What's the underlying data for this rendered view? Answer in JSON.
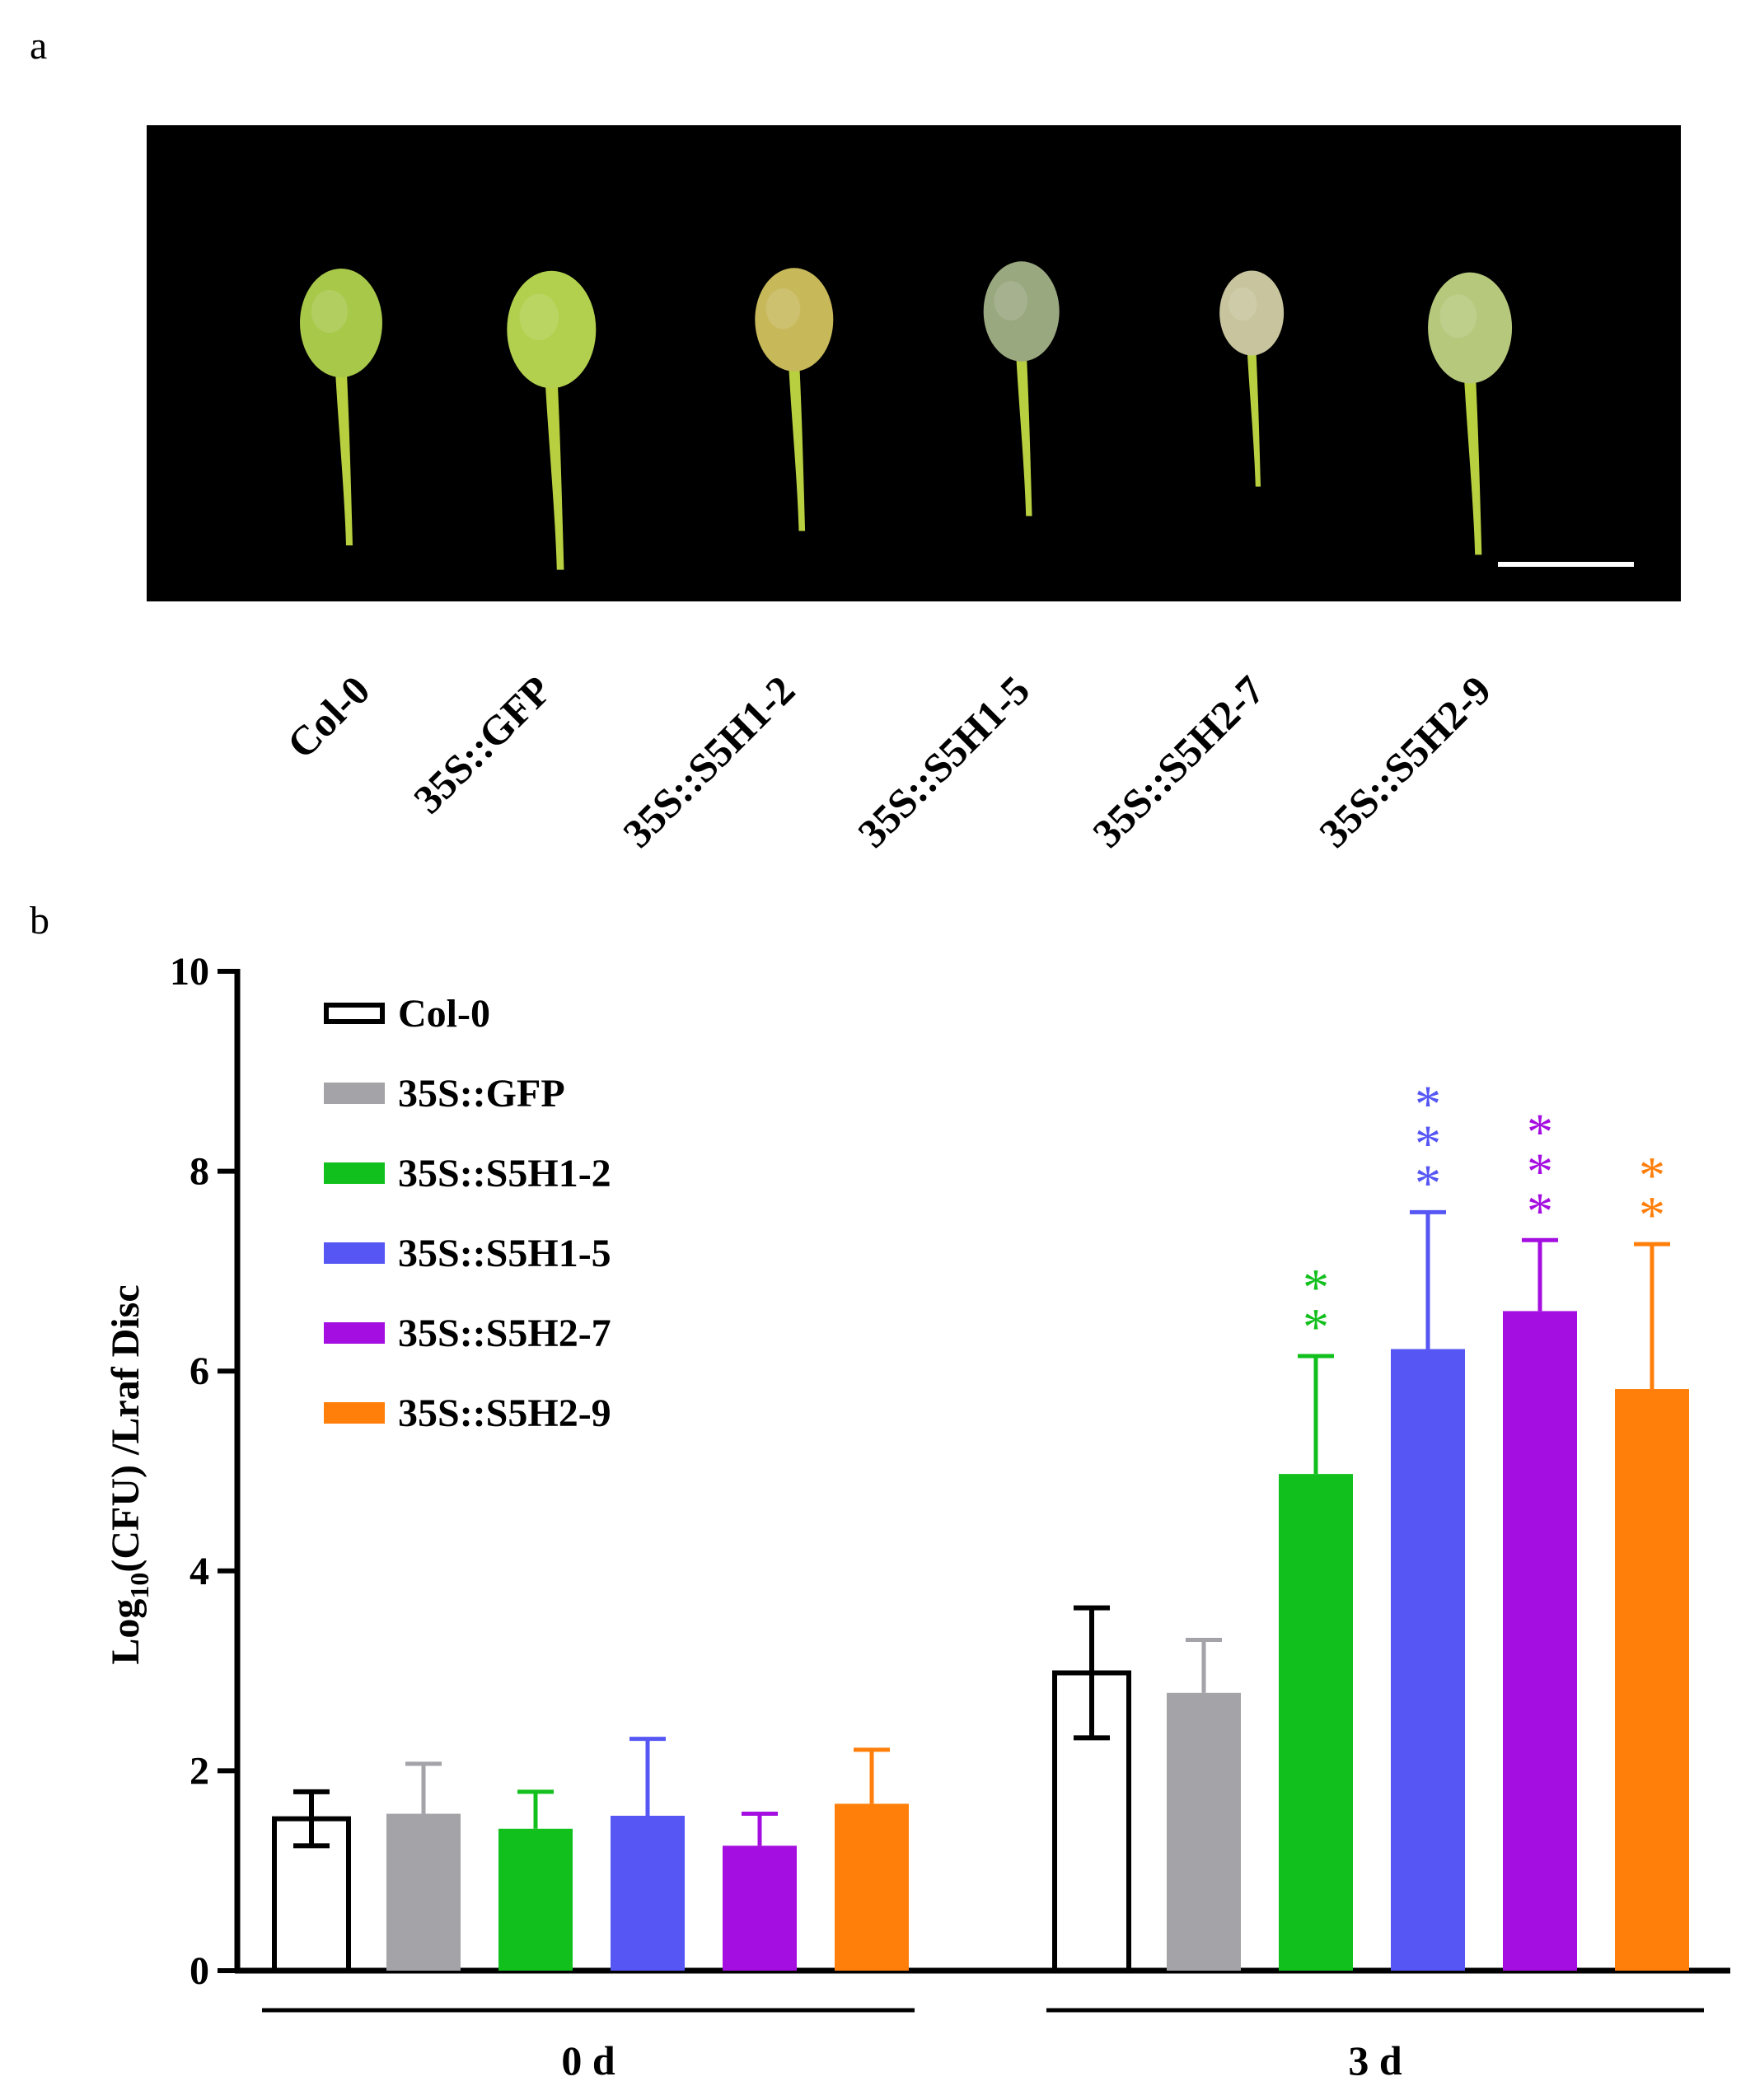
{
  "panel_a": {
    "label": "a",
    "colors": {
      "background": "#000000",
      "scale_bar": "#ffffff"
    },
    "sample_labels": [
      "Col-0",
      "35S::GFP",
      "35S::S5H1-2",
      "35S::S5H1-5",
      "35S::S5H2-7",
      "35S::S5H2-9"
    ],
    "leaf_colors": [
      "#a8c84a",
      "#b2d04e",
      "#c7b85a",
      "#9aa880",
      "#c8c49e",
      "#b6c87c"
    ]
  },
  "panel_b": {
    "label": "b"
  },
  "chart_data": {
    "type": "bar",
    "ylabel_main": "Log",
    "ylabel_sub": "10",
    "ylabel_rest": "(CFU) /Lraf  Disc",
    "ylim": [
      0,
      10
    ],
    "yticks": [
      "0",
      "2",
      "4",
      "6",
      "8",
      "10"
    ],
    "groups": [
      "0 d",
      "3 d"
    ],
    "legend_position": "top-left",
    "series": [
      {
        "name": "Col-0",
        "color": "#ffffff",
        "stroke": "#000000",
        "values": [
          1.52,
          2.98
        ],
        "errors": [
          0.27,
          0.65
        ],
        "sig": [
          "",
          ""
        ]
      },
      {
        "name": "35S::GFP",
        "color": "#a3a3a8",
        "stroke": "#a3a3a8",
        "values": [
          1.57,
          2.78
        ],
        "errors": [
          0.5,
          0.53
        ],
        "sig": [
          "",
          ""
        ]
      },
      {
        "name": "35S::S5H1-2",
        "color": "#12c01d",
        "stroke": "#12c01d",
        "values": [
          1.42,
          4.97
        ],
        "errors": [
          0.37,
          1.18
        ],
        "sig": [
          "",
          "**"
        ]
      },
      {
        "name": "35S::S5H1-5",
        "color": "#5656f5",
        "stroke": "#5656f5",
        "values": [
          1.55,
          6.22
        ],
        "errors": [
          0.77,
          1.37
        ],
        "sig": [
          "",
          "***"
        ]
      },
      {
        "name": "35S::S5H2-7",
        "color": "#a50ee0",
        "stroke": "#a50ee0",
        "values": [
          1.25,
          6.6
        ],
        "errors": [
          0.32,
          0.71
        ],
        "sig": [
          "",
          "***"
        ]
      },
      {
        "name": "35S::S5H2-9",
        "color": "#ff7f0a",
        "stroke": "#ff7f0a",
        "values": [
          1.67,
          5.82
        ],
        "errors": [
          0.54,
          1.45
        ],
        "sig": [
          "",
          "**"
        ]
      }
    ]
  }
}
